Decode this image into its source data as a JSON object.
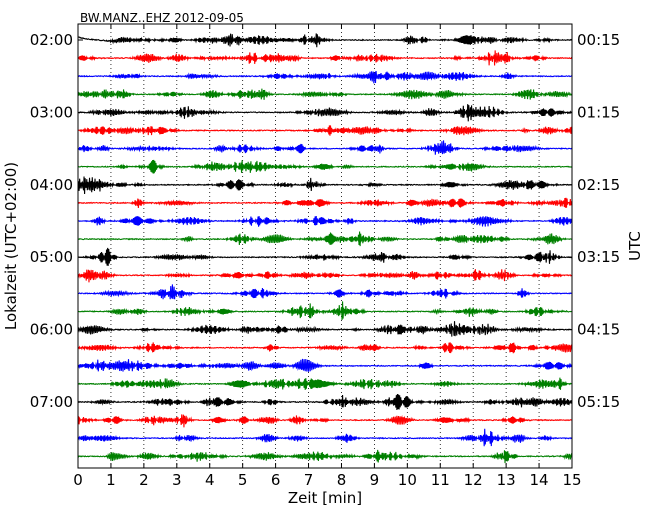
{
  "chart_data": {
    "type": "line",
    "title": "BW.MANZ..EHZ 2012-09-05",
    "xlabel": "Zeit  [min]",
    "ylabel_left": "Lokalzeit (UTC+02:00)",
    "ylabel_right": "UTC",
    "xlim": [
      0,
      15
    ],
    "x_ticks": [
      "0",
      "1",
      "2",
      "3",
      "4",
      "5",
      "6",
      "7",
      "8",
      "9",
      "10",
      "11",
      "12",
      "13",
      "14",
      "15"
    ],
    "grid": "vertical dotted",
    "trace_minutes": 15,
    "traces_per_hour": 4,
    "trace_count": 24,
    "trace_colors": [
      "#000000",
      "#ff0000",
      "#0000ff",
      "#008000"
    ],
    "left_labels": [
      {
        "trace": 0,
        "text": "02:00"
      },
      {
        "trace": 4,
        "text": "03:00"
      },
      {
        "trace": 8,
        "text": "04:00"
      },
      {
        "trace": 12,
        "text": "05:00"
      },
      {
        "trace": 16,
        "text": "06:00"
      },
      {
        "trace": 20,
        "text": "07:00"
      }
    ],
    "right_labels": [
      {
        "trace": 0,
        "text": "00:15"
      },
      {
        "trace": 4,
        "text": "01:15"
      },
      {
        "trace": 8,
        "text": "02:15"
      },
      {
        "trace": 12,
        "text": "03:15"
      },
      {
        "trace": 16,
        "text": "04:15"
      },
      {
        "trace": 20,
        "text": "05:15"
      }
    ]
  }
}
